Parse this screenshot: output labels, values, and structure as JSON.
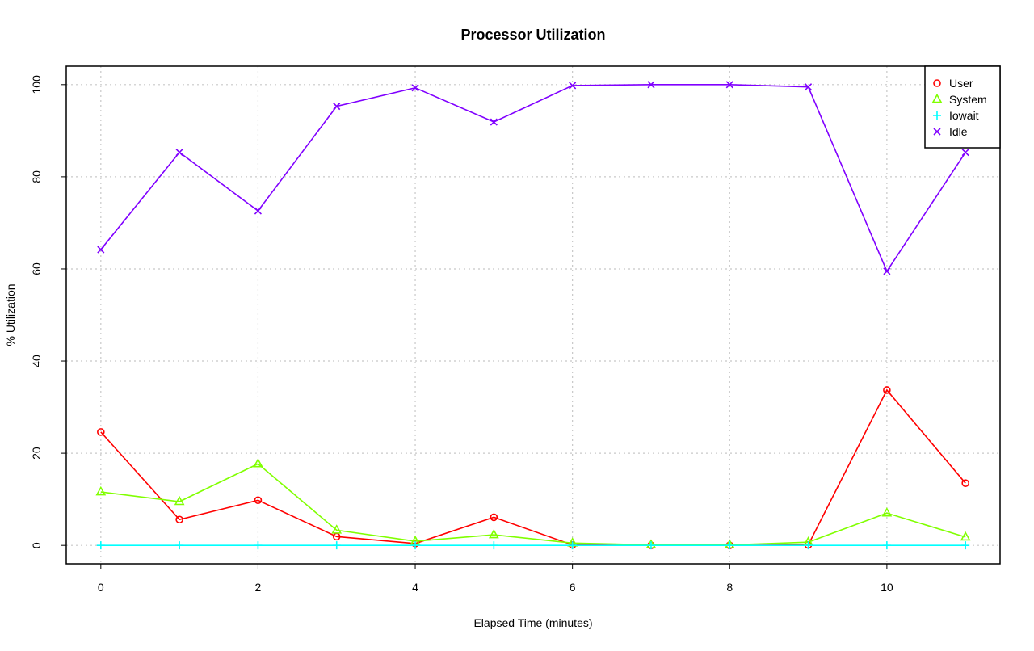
{
  "chart_data": {
    "type": "line",
    "title": "Processor Utilization",
    "xlabel": "Elapsed Time (minutes)",
    "ylabel": "% Utilization",
    "x": [
      0,
      1,
      2,
      3,
      4,
      5,
      6,
      7,
      8,
      9,
      10,
      11
    ],
    "xticks": [
      "0",
      "2",
      "4",
      "6",
      "8",
      "10"
    ],
    "xtick_values": [
      0,
      2,
      4,
      6,
      8,
      10
    ],
    "yticks": [
      "0",
      "20",
      "40",
      "60",
      "80",
      "100"
    ],
    "ytick_values": [
      0,
      20,
      40,
      60,
      80,
      100
    ],
    "xlim": [
      -0.44,
      11.44
    ],
    "ylim": [
      -4,
      104
    ],
    "grid": true,
    "legend_position": "top-right",
    "series": [
      {
        "name": "User",
        "color": "#ff0000",
        "marker": "circle",
        "values": [
          24.6,
          5.6,
          9.8,
          1.9,
          0.4,
          6.1,
          0.1,
          0.0,
          0.0,
          0.1,
          33.7,
          13.5
        ]
      },
      {
        "name": "System",
        "color": "#80ff00",
        "marker": "triangle",
        "values": [
          11.6,
          9.5,
          17.7,
          3.3,
          0.9,
          2.3,
          0.5,
          0.1,
          0.1,
          0.7,
          7.0,
          1.8
        ]
      },
      {
        "name": "Iowait",
        "color": "#00ffff",
        "marker": "plus",
        "values": [
          0,
          0,
          0,
          0,
          0,
          0,
          0,
          0,
          0,
          0,
          0,
          0
        ]
      },
      {
        "name": "Idle",
        "color": "#8000ff",
        "marker": "x",
        "values": [
          64.2,
          85.3,
          72.6,
          95.3,
          99.3,
          91.9,
          99.8,
          100,
          100,
          99.5,
          59.5,
          85.3
        ]
      }
    ]
  }
}
